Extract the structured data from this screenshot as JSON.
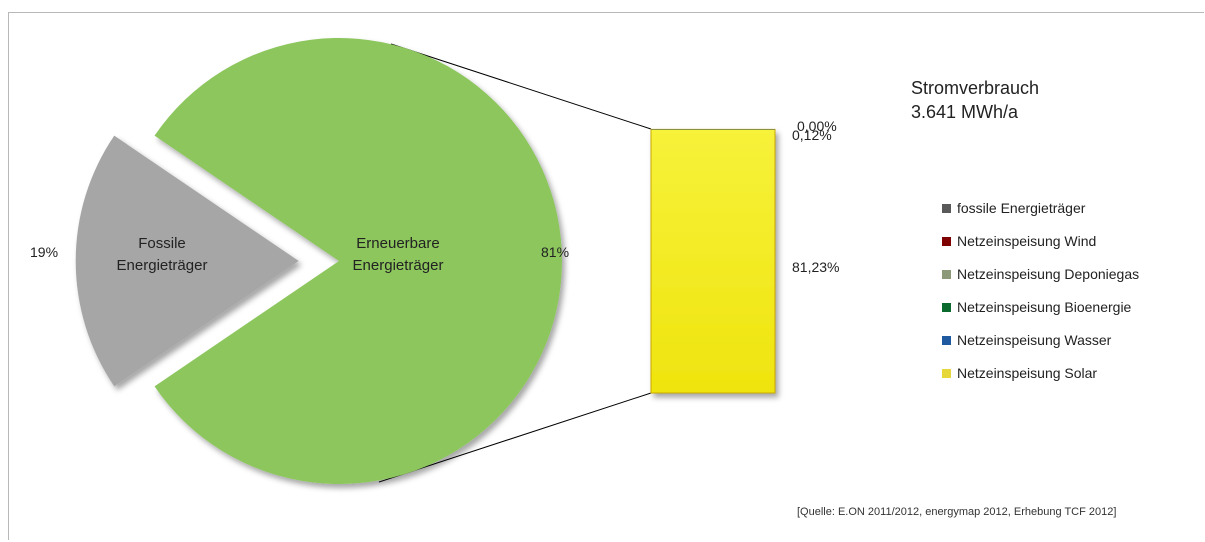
{
  "chart_data": {
    "type": "pie",
    "slices": [
      {
        "name": "Fossile Energieträger",
        "lines": [
          "Fossile",
          "Energieträger"
        ],
        "value": 19,
        "value_label": "19%",
        "color": "#a6a6a6"
      },
      {
        "name": "Erneuerbare Energieträger",
        "lines": [
          "Erneuerbare",
          "Energieträger"
        ],
        "value": 81,
        "value_label": "81%",
        "color": "#8cc65d"
      }
    ],
    "breakdown": {
      "type": "stacked-bar",
      "of_slice": "Erneuerbare Energieträger",
      "segments": [
        {
          "legend_index": 5,
          "value": 81.23,
          "label": "81,23%"
        },
        {
          "legend_index": 4,
          "value": 0.12,
          "label": "0,12%"
        },
        {
          "legend_index": 3,
          "value": 0.0,
          "label": "0,00%"
        }
      ]
    },
    "legend": [
      {
        "label": "fossile Energieträger",
        "color": "#595959"
      },
      {
        "label": "Netzeinspeisung Wind",
        "color": "#7f0000"
      },
      {
        "label": "Netzeinspeisung Deponiegas",
        "color": "#8c9a7a"
      },
      {
        "label": "Netzeinspeisung Bioenergie",
        "color": "#0b6b2e"
      },
      {
        "label": "Netzeinspeisung Wasser",
        "color": "#1f5aa0"
      },
      {
        "label": "Netzeinspeisung Solar",
        "color": "#e6d83a"
      }
    ],
    "legend_position": "right",
    "title_lines": [
      "Stromverbrauch",
      "3.641 MWh/a"
    ],
    "source": "[Quelle: E.ON 2011/2012, energymap 2012, Erhebung TCF 2012]"
  },
  "colors": {
    "bar_fill": "#f5ee1a",
    "bar_stroke": "#c9a800",
    "connector": "#000000"
  }
}
